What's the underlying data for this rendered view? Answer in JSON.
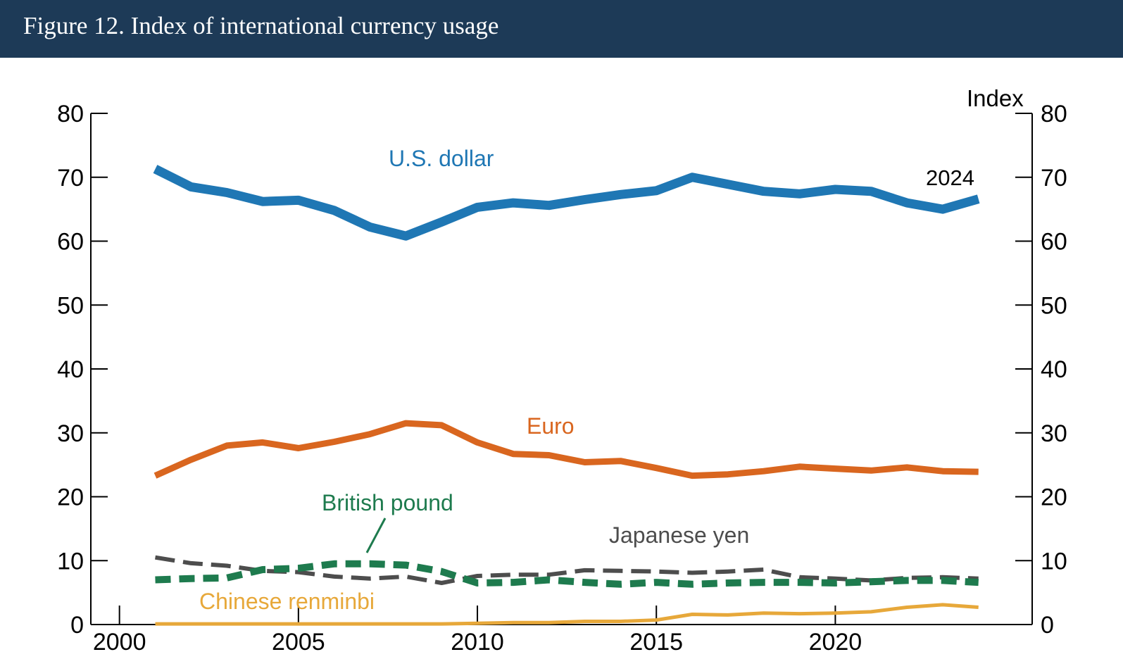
{
  "header": {
    "title": "Figure 12. Index of international currency usage"
  },
  "chart_data": {
    "type": "line",
    "title": "Figure 12. Index of international currency usage",
    "xlabel": "",
    "ylabel": "Index",
    "xlim": [
      1999.2,
      2025.5
    ],
    "ylim": [
      0,
      80
    ],
    "x_ticks": [
      "2000",
      "2005",
      "2010",
      "2015",
      "2020"
    ],
    "y_ticks": [
      "0",
      "10",
      "20",
      "30",
      "40",
      "50",
      "60",
      "70",
      "80"
    ],
    "end_label": "2024",
    "x": [
      2001,
      2002,
      2003,
      2004,
      2005,
      2006,
      2007,
      2008,
      2009,
      2010,
      2011,
      2012,
      2013,
      2014,
      2015,
      2016,
      2017,
      2018,
      2019,
      2020,
      2021,
      2022,
      2023,
      2024
    ],
    "series": [
      {
        "name": "U.S. dollar",
        "color": "#1f77b4",
        "style": "solid",
        "values": [
          71.3,
          68.5,
          67.6,
          66.2,
          66.4,
          64.8,
          62.2,
          60.8,
          63.0,
          65.3,
          66.0,
          65.6,
          66.5,
          67.3,
          67.9,
          70.0,
          68.9,
          67.8,
          67.4,
          68.1,
          67.8,
          66.0,
          65.0,
          66.6
        ]
      },
      {
        "name": "Euro",
        "color": "#d9661f",
        "style": "solid",
        "values": [
          23.3,
          25.8,
          28.0,
          28.5,
          27.6,
          28.6,
          29.8,
          31.5,
          31.2,
          28.5,
          26.7,
          26.5,
          25.4,
          25.6,
          24.5,
          23.3,
          23.5,
          24.0,
          24.7,
          24.4,
          24.1,
          24.6,
          24.0,
          23.9
        ]
      },
      {
        "name": "Japanese yen",
        "color": "#4d4d4d",
        "style": "dashed",
        "values": [
          10.5,
          9.6,
          9.2,
          8.4,
          8.2,
          7.5,
          7.2,
          7.5,
          6.5,
          7.6,
          7.8,
          7.8,
          8.5,
          8.4,
          8.3,
          8.1,
          8.3,
          8.6,
          7.4,
          7.2,
          6.9,
          7.3,
          7.4,
          7.2
        ]
      },
      {
        "name": "British pound",
        "color": "#1e7b4e",
        "style": "dashed",
        "values": [
          7.0,
          7.2,
          7.3,
          8.6,
          8.8,
          9.5,
          9.5,
          9.3,
          8.3,
          6.5,
          6.6,
          7.0,
          6.6,
          6.3,
          6.6,
          6.3,
          6.5,
          6.6,
          6.6,
          6.5,
          6.7,
          6.9,
          6.9,
          6.6
        ]
      },
      {
        "name": "Chinese renminbi",
        "color": "#e7a83a",
        "style": "solid",
        "values": [
          0.1,
          0.1,
          0.1,
          0.1,
          0.1,
          0.1,
          0.1,
          0.1,
          0.1,
          0.2,
          0.3,
          0.3,
          0.5,
          0.5,
          0.7,
          1.6,
          1.5,
          1.8,
          1.7,
          1.8,
          2.0,
          2.7,
          3.1,
          2.7
        ]
      }
    ]
  }
}
